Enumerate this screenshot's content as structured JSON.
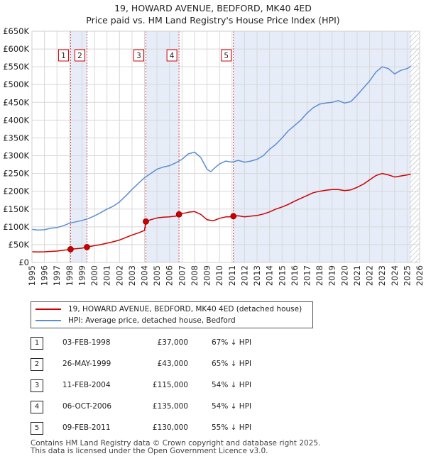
{
  "title_line1": "19, HOWARD AVENUE, BEDFORD, MK40 4ED",
  "title_line2": "Price paid vs. HM Land Registry's House Price Index (HPI)",
  "legend": {
    "red_label": "19, HOWARD AVENUE, BEDFORD, MK40 4ED (detached house)",
    "blue_label": "HPI: Average price, detached house, Bedford"
  },
  "sales": [
    {
      "num": "1",
      "date": "03-FEB-1998",
      "price": "£37,000",
      "hpi": "67% ↓ HPI"
    },
    {
      "num": "2",
      "date": "26-MAY-1999",
      "price": "£43,000",
      "hpi": "65% ↓ HPI"
    },
    {
      "num": "3",
      "date": "11-FEB-2004",
      "price": "£115,000",
      "hpi": "54% ↓ HPI"
    },
    {
      "num": "4",
      "date": "06-OCT-2006",
      "price": "£135,000",
      "hpi": "54% ↓ HPI"
    },
    {
      "num": "5",
      "date": "09-FEB-2011",
      "price": "£130,000",
      "hpi": "55% ↓ HPI"
    }
  ],
  "footer_line1": "Contains HM Land Registry data © Crown copyright and database right 2025.",
  "footer_line2": "This data is licensed under the Open Government Licence v3.0.",
  "colors": {
    "red": "#cc0000",
    "blue": "#5b8fd1",
    "shade": "#dde6f5",
    "grid": "#d8d8d8",
    "hatch": "#aaaaaa"
  },
  "chart_data": {
    "type": "line",
    "title": "19, HOWARD AVENUE, BEDFORD, MK40 4ED — Price paid vs. HM Land Registry's House Price Index (HPI)",
    "xlabel": "",
    "ylabel": "",
    "xlim": [
      1995,
      2026
    ],
    "ylim": [
      0,
      650000
    ],
    "y_ticks": [
      0,
      50000,
      100000,
      150000,
      200000,
      250000,
      300000,
      350000,
      400000,
      450000,
      500000,
      550000,
      600000,
      650000
    ],
    "y_tick_labels": [
      "£0",
      "£50K",
      "£100K",
      "£150K",
      "£200K",
      "£250K",
      "£300K",
      "£350K",
      "£400K",
      "£450K",
      "£500K",
      "£550K",
      "£600K",
      "£650K"
    ],
    "x_ticks": [
      1995,
      1996,
      1997,
      1998,
      1999,
      2000,
      2001,
      2002,
      2003,
      2004,
      2005,
      2006,
      2007,
      2008,
      2009,
      2010,
      2011,
      2012,
      2013,
      2014,
      2015,
      2016,
      2017,
      2018,
      2019,
      2020,
      2021,
      2022,
      2023,
      2024,
      2025,
      2026
    ],
    "hatch_from": 2025.2,
    "series": [
      {
        "name": "HPI: Average price, detached house, Bedford",
        "color": "#5b8fd1",
        "x": [
          1995.0,
          1995.5,
          1996.0,
          1996.5,
          1997.0,
          1997.5,
          1998.0,
          1998.5,
          1999.0,
          1999.5,
          2000.0,
          2000.5,
          2001.0,
          2001.5,
          2002.0,
          2002.5,
          2003.0,
          2003.5,
          2004.0,
          2004.5,
          2005.0,
          2005.5,
          2006.0,
          2006.5,
          2007.0,
          2007.5,
          2008.0,
          2008.5,
          2009.0,
          2009.3,
          2009.5,
          2010.0,
          2010.5,
          2011.0,
          2011.5,
          2012.0,
          2012.5,
          2013.0,
          2013.5,
          2014.0,
          2014.5,
          2015.0,
          2015.5,
          2016.0,
          2016.5,
          2017.0,
          2017.5,
          2018.0,
          2018.5,
          2019.0,
          2019.5,
          2020.0,
          2020.5,
          2021.0,
          2021.5,
          2022.0,
          2022.5,
          2023.0,
          2023.5,
          2024.0,
          2024.5,
          2025.0,
          2025.3
        ],
        "values": [
          93000,
          91000,
          92000,
          96000,
          98000,
          103000,
          110000,
          114000,
          118000,
          123000,
          131000,
          140000,
          150000,
          158000,
          170000,
          187000,
          205000,
          222000,
          238000,
          250000,
          262000,
          268000,
          272000,
          280000,
          290000,
          305000,
          310000,
          295000,
          262000,
          255000,
          262000,
          277000,
          285000,
          282000,
          287000,
          282000,
          285000,
          290000,
          300000,
          318000,
          332000,
          350000,
          370000,
          385000,
          400000,
          420000,
          435000,
          445000,
          448000,
          450000,
          455000,
          448000,
          452000,
          470000,
          490000,
          510000,
          535000,
          550000,
          545000,
          530000,
          540000,
          545000,
          552000
        ]
      },
      {
        "name": "19, HOWARD AVENUE, BEDFORD, MK40 4ED (detached house)",
        "color": "#cc0000",
        "x": [
          1995.0,
          1995.5,
          1996.0,
          1996.5,
          1997.0,
          1997.5,
          1998.0,
          1998.09,
          1998.5,
          1999.0,
          1999.4,
          1999.5,
          2000.0,
          2000.5,
          2001.0,
          2001.5,
          2002.0,
          2002.5,
          2003.0,
          2003.5,
          2004.0,
          2004.11,
          2004.5,
          2005.0,
          2005.5,
          2006.0,
          2006.5,
          2006.76,
          2007.0,
          2007.5,
          2008.0,
          2008.5,
          2009.0,
          2009.5,
          2010.0,
          2010.5,
          2011.0,
          2011.11,
          2011.5,
          2012.0,
          2012.5,
          2013.0,
          2013.5,
          2014.0,
          2014.5,
          2015.0,
          2015.5,
          2016.0,
          2016.5,
          2017.0,
          2017.5,
          2018.0,
          2018.5,
          2019.0,
          2019.5,
          2020.0,
          2020.5,
          2021.0,
          2021.5,
          2022.0,
          2022.5,
          2023.0,
          2023.5,
          2024.0,
          2024.5,
          2025.0,
          2025.3
        ],
        "values": [
          30000,
          29500,
          30000,
          31000,
          32000,
          34000,
          36000,
          37000,
          38500,
          40000,
          43000,
          44000,
          47000,
          50000,
          54000,
          58000,
          63000,
          70000,
          77000,
          83000,
          90000,
          115000,
          120000,
          125000,
          127000,
          128000,
          130000,
          135000,
          137000,
          141000,
          143000,
          135000,
          120000,
          117000,
          124000,
          128000,
          128000,
          130000,
          131000,
          128000,
          130000,
          132000,
          136000,
          142000,
          150000,
          156000,
          163000,
          172000,
          180000,
          188000,
          196000,
          200000,
          203000,
          205000,
          205000,
          202000,
          204000,
          211000,
          220000,
          232000,
          244000,
          250000,
          246000,
          240000,
          243000,
          246000,
          248000
        ]
      }
    ],
    "sale_points": [
      {
        "label": "1",
        "x": 1998.09,
        "value": 37000
      },
      {
        "label": "2",
        "x": 1999.4,
        "value": 43000
      },
      {
        "label": "3",
        "x": 2004.11,
        "value": 115000
      },
      {
        "label": "4",
        "x": 2006.76,
        "value": 135000
      },
      {
        "label": "5",
        "x": 2011.11,
        "value": 130000
      }
    ],
    "shaded_spans": [
      [
        1998.09,
        1999.4
      ],
      [
        2004.11,
        2006.76
      ],
      [
        2011.11,
        2025.3
      ]
    ]
  }
}
